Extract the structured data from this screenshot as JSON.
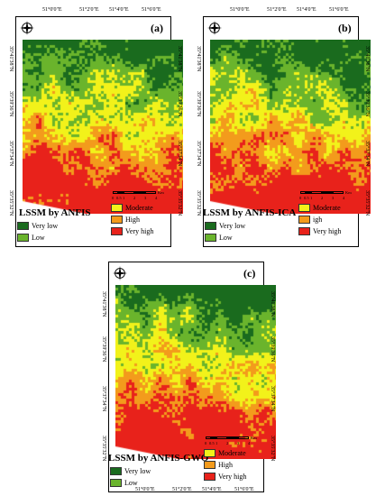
{
  "colors": {
    "very_low": "#1a6b1e",
    "low": "#6ab42c",
    "moderate": "#f2f21a",
    "high": "#f39b1c",
    "very_high": "#e8221b"
  },
  "icons": {
    "north": "compass-rose-icon"
  },
  "legend_labels": {
    "very_low": "Very low",
    "low": "Low",
    "moderate": "Moderate",
    "high": "High",
    "high_b": "igh",
    "very_high": "Very high"
  },
  "top_ticks": [
    "51°0'0\"E",
    "51°2'0\"E",
    "51°4'0\"E",
    "51°6'0\"E"
  ],
  "lat_ticks": [
    "35°41'38\"N",
    "35°39'36\"N",
    "35°37'34\"N",
    "35°35'32\"N"
  ],
  "scale": {
    "labels": [
      "0",
      "0.5",
      "1",
      "2",
      "3",
      "4"
    ],
    "unit": "Km"
  },
  "panels": [
    {
      "letter": "(a)",
      "title": "LSSM by ANFIS"
    },
    {
      "letter": "(b)",
      "title": "LSSM by ANFIS-ICA"
    },
    {
      "letter": "(c)",
      "title": "LSSM by ANFIS-GWO"
    }
  ]
}
